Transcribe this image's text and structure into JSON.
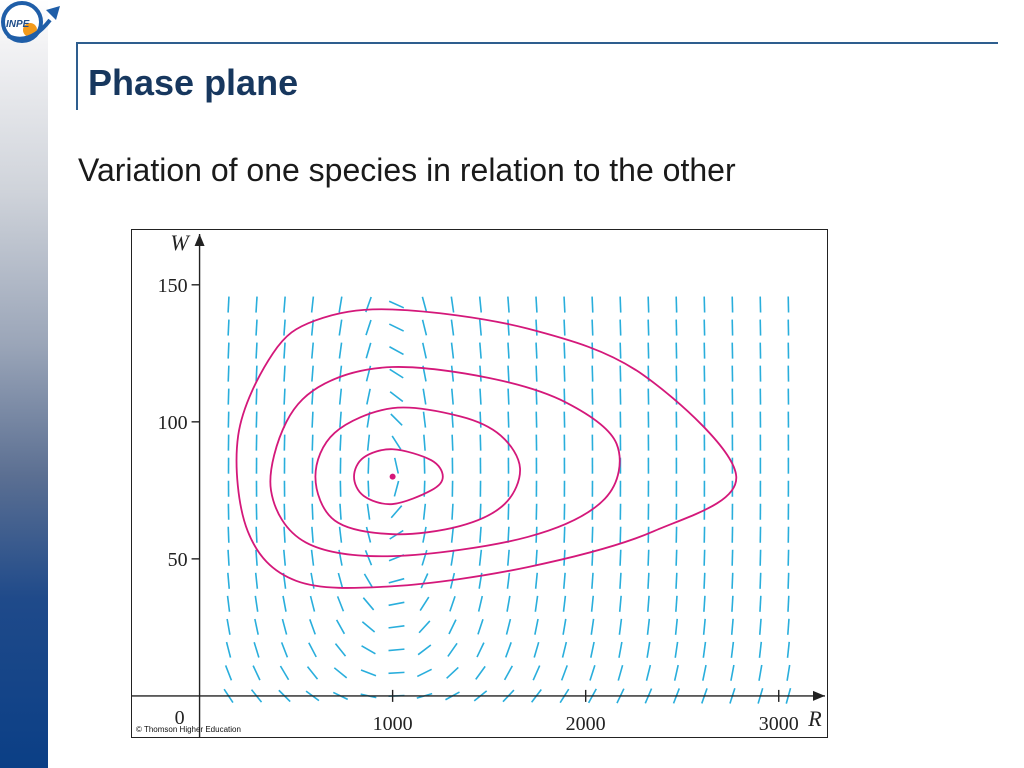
{
  "slide": {
    "title": "Phase plane",
    "subtitle": "Variation of one species in relation to the other"
  },
  "logo": {
    "text": "INPE",
    "icon": "inpe-logo"
  },
  "colors": {
    "title": "#17375e",
    "rule": "#2e5e8e",
    "direction_field": "#29aedc",
    "trajectory": "#d4187a"
  },
  "figure": {
    "credit": "© Thomson Higher Education"
  },
  "chart_data": {
    "type": "line",
    "subtype": "phase-plane with direction field",
    "xlabel": "R",
    "ylabel": "W",
    "xticks": [
      "1000",
      "2000",
      "3000"
    ],
    "yticks": [
      "50",
      "100",
      "150"
    ],
    "origin_label": "0",
    "xlim": [
      -350,
      3250
    ],
    "ylim": [
      -15,
      170
    ],
    "equilibrium": {
      "x": 1000,
      "y": 80
    },
    "series": [
      {
        "values": [
          [
            1000,
            90
          ],
          [
            1200,
            86
          ],
          [
            1260,
            80
          ],
          [
            1200,
            75
          ],
          [
            1000,
            70
          ],
          [
            850,
            73
          ],
          [
            800,
            80
          ],
          [
            850,
            87
          ],
          [
            1000,
            90
          ]
        ]
      },
      {
        "values": [
          [
            1000,
            105
          ],
          [
            1350,
            102
          ],
          [
            1560,
            95
          ],
          [
            1660,
            83
          ],
          [
            1580,
            70
          ],
          [
            1350,
            62
          ],
          [
            1000,
            59
          ],
          [
            700,
            64
          ],
          [
            600,
            80
          ],
          [
            700,
            96
          ],
          [
            1000,
            105
          ]
        ]
      },
      {
        "values": [
          [
            1000,
            120
          ],
          [
            1500,
            116
          ],
          [
            1900,
            107
          ],
          [
            2160,
            92
          ],
          [
            2100,
            72
          ],
          [
            1700,
            58
          ],
          [
            1000,
            51
          ],
          [
            550,
            56
          ],
          [
            370,
            75
          ],
          [
            450,
            100
          ],
          [
            650,
            114
          ],
          [
            1000,
            120
          ]
        ]
      },
      {
        "values": [
          [
            1000,
            141
          ],
          [
            1700,
            134
          ],
          [
            2300,
            117
          ],
          [
            2780,
            80
          ],
          [
            2350,
            60
          ],
          [
            1700,
            47
          ],
          [
            1000,
            40
          ],
          [
            500,
            42
          ],
          [
            250,
            60
          ],
          [
            200,
            95
          ],
          [
            380,
            125
          ],
          [
            600,
            137
          ],
          [
            1000,
            141
          ]
        ]
      }
    ]
  }
}
